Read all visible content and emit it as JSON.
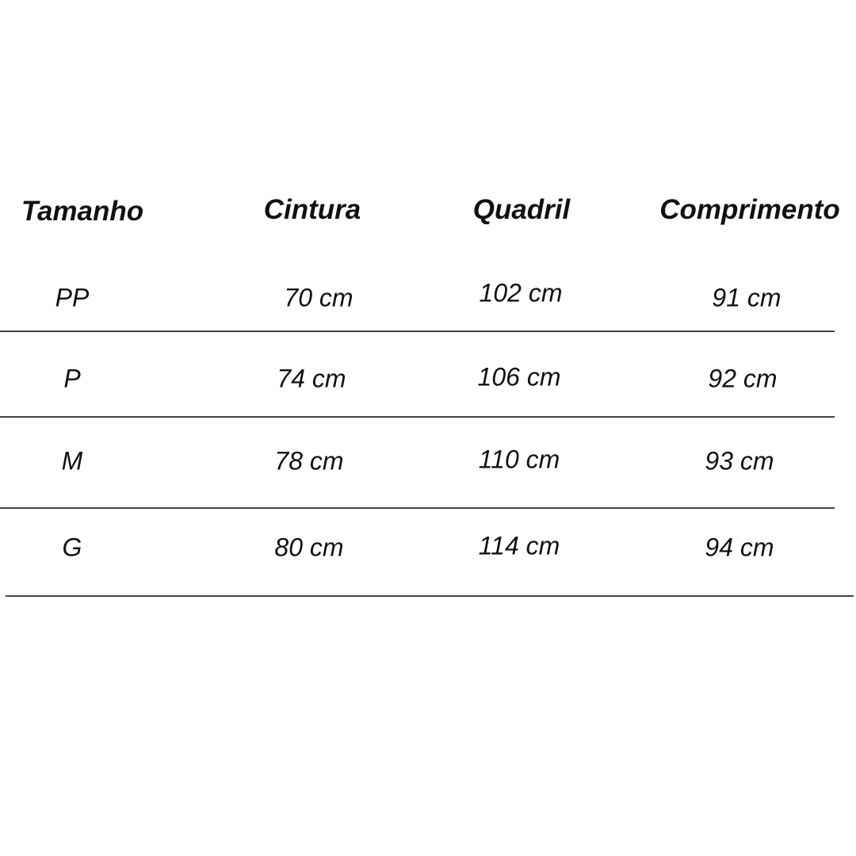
{
  "table": {
    "headers": [
      "Tamanho",
      "Cintura",
      "Quadril",
      "Comprimento"
    ],
    "rows": [
      [
        "PP",
        "70 cm",
        "102 cm",
        "91 cm"
      ],
      [
        "P",
        "74 cm",
        "106 cm",
        "92 cm"
      ],
      [
        "M",
        "78 cm",
        "110 cm",
        "93 cm"
      ],
      [
        "G",
        "80 cm",
        "114 cm",
        "94 cm"
      ]
    ]
  }
}
